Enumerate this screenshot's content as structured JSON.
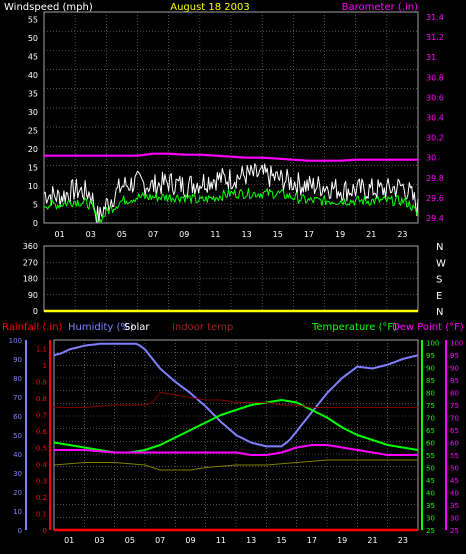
{
  "header": {
    "left_label": "Windspeed (mph)",
    "date": "August 18 2003",
    "right_label": "Barometer (.in)"
  },
  "colors": {
    "background": "#000000",
    "grid": "#808080",
    "wind": "#ffffff",
    "gust": "#00ff00",
    "barometer": "#ff00ff",
    "direction": "#ffff00",
    "rain": "#ff0000",
    "humidity": "#8080ff",
    "solar": "#ffffff",
    "indoor": "#800000",
    "temperature": "#00ff00",
    "dewpoint": "#ff00ff",
    "extra": "#808000"
  },
  "chart_data": [
    {
      "type": "line",
      "name": "wind-barometer",
      "x_ticks": [
        "01",
        "03",
        "05",
        "07",
        "09",
        "11",
        "13",
        "15",
        "17",
        "19",
        "21",
        "23"
      ],
      "y_left": {
        "label": "Windspeed (mph)",
        "ticks": [
          0,
          5,
          10,
          15,
          20,
          25,
          30,
          35,
          40,
          45,
          50,
          55
        ],
        "ylim": [
          0,
          57
        ]
      },
      "y_right": {
        "label": "Barometer (.in)",
        "ticks": [
          "29.4",
          "29.6",
          "29.8",
          "30",
          "30.2",
          "30.4",
          "30.6",
          "30.8",
          "31",
          "31.2",
          "31.4"
        ],
        "ylim": [
          29.35,
          31.45
        ]
      },
      "series": [
        {
          "key": "wind",
          "axis": "left",
          "x": [
            0,
            1,
            2,
            3,
            3.5,
            4,
            5,
            6,
            7,
            8,
            9,
            10,
            11,
            12,
            13,
            14,
            15,
            16,
            17,
            18,
            19,
            20,
            21,
            22,
            23,
            23.5,
            24
          ],
          "values": [
            8,
            7,
            9,
            8,
            1,
            5,
            10,
            11,
            10,
            11,
            10,
            11,
            12,
            12,
            13,
            13,
            12,
            11,
            10,
            10,
            9,
            9,
            9,
            9,
            10,
            8,
            4
          ]
        },
        {
          "key": "gust",
          "axis": "left",
          "x": [
            0,
            1,
            2,
            3,
            3.5,
            4,
            5,
            6,
            7,
            8,
            9,
            10,
            11,
            12,
            13,
            14,
            15,
            16,
            17,
            18,
            19,
            20,
            21,
            22,
            23,
            23.5,
            24
          ],
          "values": [
            5,
            5,
            6,
            5,
            0,
            3,
            6,
            7,
            7,
            7,
            7,
            6,
            7,
            8,
            8,
            8,
            8,
            7,
            6,
            6,
            6,
            6,
            6,
            6,
            6,
            5,
            2
          ]
        },
        {
          "key": "barometer",
          "axis": "right",
          "x": [
            0,
            2,
            4,
            6,
            7,
            8,
            9,
            10,
            11,
            12,
            13,
            14,
            15,
            16,
            17,
            18,
            19,
            20,
            21,
            22,
            23,
            24
          ],
          "values": [
            30.02,
            30.02,
            30.02,
            30.02,
            30.04,
            30.04,
            30.03,
            30.03,
            30.02,
            30.01,
            30.0,
            30.0,
            29.99,
            29.98,
            29.97,
            29.97,
            29.97,
            29.98,
            29.98,
            29.98,
            29.98,
            29.98
          ]
        }
      ]
    },
    {
      "type": "line",
      "name": "wind-direction",
      "x_ticks": [
        "01",
        "03",
        "05",
        "07",
        "09",
        "11",
        "13",
        "15",
        "17",
        "19",
        "21",
        "23"
      ],
      "y_left": {
        "ticks": [
          0,
          90,
          180,
          270,
          360
        ],
        "ylim": [
          0,
          360
        ]
      },
      "y_right_labels": [
        "N",
        "W",
        "S",
        "E",
        "N"
      ],
      "series": [
        {
          "key": "direction",
          "axis": "left",
          "x": [
            0,
            24
          ],
          "values": [
            0,
            0
          ]
        }
      ]
    },
    {
      "type": "line",
      "name": "rain-humidity-temp",
      "x_ticks": [
        "01",
        "03",
        "05",
        "07",
        "09",
        "11",
        "13",
        "15",
        "17",
        "19",
        "21",
        "23"
      ],
      "labels": {
        "rainfall": "Rainfall (.in)",
        "humidity": "Humidity (%)",
        "solar": "Solar",
        "indoor": "Indoor temp",
        "temperature": "Temperature (°F)",
        "dewpoint": "Dew Point (°F)"
      },
      "y_rain": {
        "ticks": [
          "0",
          "0.1",
          "0.2",
          "0.3",
          "0.4",
          "0.5",
          "0.6",
          "0.7",
          "0.8",
          "0.9",
          "1",
          "1.1"
        ],
        "ylim": [
          0,
          1.15
        ]
      },
      "y_humidity": {
        "ticks": [
          0,
          10,
          20,
          30,
          40,
          50,
          60,
          70,
          80,
          90,
          100
        ],
        "ylim": [
          0,
          100
        ]
      },
      "y_temp": {
        "ticks": [
          25,
          30,
          35,
          40,
          45,
          50,
          55,
          60,
          65,
          70,
          75,
          80,
          85,
          90,
          95,
          100
        ],
        "ylim": [
          25,
          101
        ]
      },
      "y_temp2": {
        "ticks": [
          25,
          30,
          35,
          40,
          45,
          50,
          55,
          60,
          65,
          70,
          75,
          80,
          85,
          90,
          95,
          100
        ],
        "ylim": [
          25,
          101
        ]
      },
      "series": [
        {
          "key": "rain",
          "axis": "rain",
          "x": [
            0,
            24
          ],
          "values": [
            0,
            0
          ]
        },
        {
          "key": "humidity",
          "axis": "humidity",
          "x": [
            0,
            0.5,
            1,
            2,
            3,
            4,
            5,
            5.5,
            6,
            7,
            8,
            9,
            10,
            11,
            12,
            13,
            14,
            15,
            15.5,
            16,
            17,
            18,
            19,
            20,
            21,
            22,
            23,
            24
          ],
          "values": [
            92,
            93,
            95,
            97,
            98,
            98,
            98,
            98,
            95,
            85,
            78,
            72,
            65,
            57,
            50,
            46,
            44,
            44,
            47,
            52,
            62,
            72,
            80,
            86,
            85,
            87,
            90,
            92
          ]
        },
        {
          "key": "temperature",
          "axis": "temp",
          "x": [
            0,
            1,
            2,
            3,
            4,
            5,
            6,
            7,
            8,
            9,
            10,
            11,
            12,
            13,
            14,
            15,
            16,
            17,
            18,
            19,
            20,
            21,
            22,
            23,
            24
          ],
          "values": [
            60,
            59,
            58,
            57,
            56,
            56,
            57,
            59,
            62,
            65,
            68,
            71,
            73,
            75,
            76,
            77,
            76,
            73,
            70,
            66,
            63,
            61,
            59,
            58,
            57
          ]
        },
        {
          "key": "dewpoint",
          "axis": "temp",
          "x": [
            0,
            2,
            4,
            6,
            8,
            10,
            12,
            13,
            14,
            15,
            16,
            17,
            18,
            19,
            20,
            21,
            22,
            23,
            24
          ],
          "values": [
            57,
            57,
            56,
            56,
            56,
            56,
            56,
            55,
            55,
            56,
            58,
            59,
            59,
            58,
            57,
            56,
            55,
            55,
            55
          ]
        },
        {
          "key": "indoor",
          "axis": "temp",
          "x": [
            0,
            2,
            4,
            5,
            6,
            6.5,
            7,
            8,
            9,
            10,
            11,
            12,
            13,
            14,
            15,
            16,
            17,
            18,
            19,
            20,
            21,
            22,
            23,
            24
          ],
          "values": [
            74,
            74,
            75,
            75,
            75,
            76,
            80,
            79,
            78,
            77,
            77,
            76,
            76,
            76,
            75,
            75,
            74,
            74,
            74,
            74,
            74,
            74,
            74,
            74
          ]
        },
        {
          "key": "extra",
          "axis": "temp",
          "x": [
            0,
            2,
            4,
            6,
            7,
            8,
            9,
            10,
            12,
            14,
            16,
            18,
            20,
            22,
            24
          ],
          "values": [
            51,
            52,
            52,
            51,
            49,
            49,
            49,
            50,
            51,
            51,
            52,
            53,
            53,
            53,
            53
          ]
        }
      ]
    }
  ]
}
